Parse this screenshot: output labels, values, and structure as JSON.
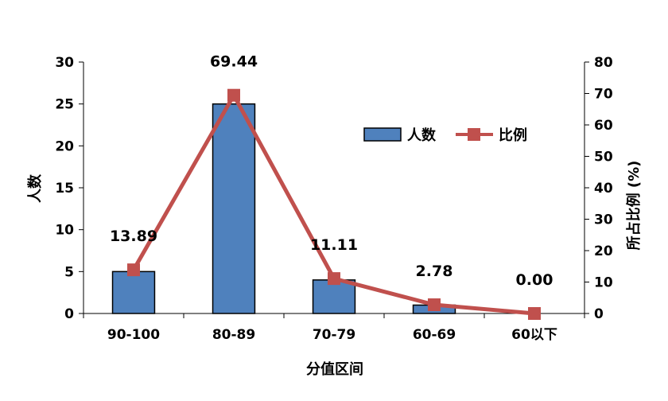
{
  "chart_data": {
    "type": "bar+line",
    "categories": [
      "90-100",
      "80-89",
      "70-79",
      "60-69",
      "60以下"
    ],
    "series": [
      {
        "name": "人数",
        "type": "bar",
        "axis": "left",
        "values": [
          5,
          25,
          4,
          1,
          0
        ],
        "color": "#4F81BD"
      },
      {
        "name": "比例",
        "type": "line",
        "axis": "right",
        "values": [
          13.89,
          69.44,
          11.11,
          2.78,
          0.0
        ],
        "color": "#C0504D"
      }
    ],
    "data_labels": [
      "13.89",
      "69.44",
      "11.11",
      "2.78",
      "0.00"
    ],
    "xlabel": "分值区间",
    "ylabel_left": "人数",
    "ylabel_right": "所占比例 (%)",
    "ylim_left": [
      0,
      30
    ],
    "yticks_left": [
      0,
      5,
      10,
      15,
      20,
      25,
      30
    ],
    "ylim_right": [
      0,
      80
    ],
    "yticks_right": [
      0,
      10,
      20,
      30,
      40,
      50,
      60,
      70,
      80
    ],
    "grid": false,
    "legend": "top-right"
  }
}
